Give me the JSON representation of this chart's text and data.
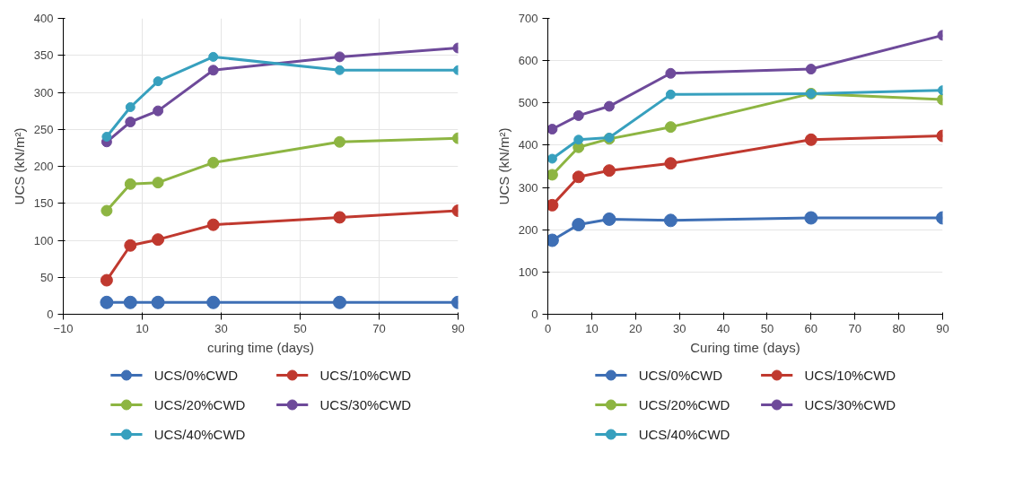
{
  "chart_data": [
    {
      "type": "line",
      "xlabel": "curing time (days)",
      "ylabel": "UCS (kN/m²)",
      "x": [
        1,
        7,
        14,
        28,
        60,
        90
      ],
      "xlim": [
        -10,
        90
      ],
      "xticks": [
        -10,
        10,
        30,
        50,
        70,
        90
      ],
      "ylim": [
        0,
        400
      ],
      "yticks": [
        0,
        50,
        100,
        150,
        200,
        250,
        300,
        350,
        400
      ],
      "grid": true,
      "legend": "bottom",
      "marker": "circle",
      "line_style": "solid",
      "series": [
        {
          "name": "UCS/0%CWD",
          "color": "#3e6fb5",
          "values": [
            16,
            16,
            16,
            16,
            16,
            16
          ]
        },
        {
          "name": "UCS/10%CWD",
          "color": "#c0392f",
          "values": [
            46,
            93,
            101,
            121,
            131,
            140
          ]
        },
        {
          "name": "UCS/20%CWD",
          "color": "#8db542",
          "values": [
            140,
            176,
            178,
            205,
            233,
            238
          ]
        },
        {
          "name": "UCS/30%CWD",
          "color": "#6e4a9a",
          "values": [
            233,
            260,
            275,
            330,
            348,
            360
          ]
        },
        {
          "name": "UCS/40%CWD",
          "color": "#37a0be",
          "values": [
            240,
            280,
            315,
            348,
            330,
            330
          ]
        }
      ]
    },
    {
      "type": "line",
      "xlabel": "Curing time (days)",
      "ylabel": "UCS (kN/m²)",
      "x": [
        1,
        7,
        14,
        28,
        60,
        90
      ],
      "xlim": [
        0,
        90
      ],
      "xticks": [
        0,
        10,
        20,
        30,
        40,
        50,
        60,
        70,
        80,
        90
      ],
      "ylim": [
        0,
        700
      ],
      "yticks": [
        0,
        100,
        200,
        300,
        400,
        500,
        600,
        700
      ],
      "grid": "y",
      "legend": "bottom",
      "marker": "circle",
      "line_style": "solid",
      "series": [
        {
          "name": "UCS/0%CWD",
          "color": "#3e6fb5",
          "values": [
            175,
            212,
            225,
            222,
            228,
            228
          ]
        },
        {
          "name": "UCS/10%CWD",
          "color": "#c0392f",
          "values": [
            258,
            325,
            340,
            357,
            413,
            422
          ]
        },
        {
          "name": "UCS/20%CWD",
          "color": "#8db542",
          "values": [
            330,
            395,
            415,
            443,
            522,
            508
          ]
        },
        {
          "name": "UCS/30%CWD",
          "color": "#6e4a9a",
          "values": [
            438,
            470,
            492,
            570,
            580,
            660
          ]
        },
        {
          "name": "UCS/40%CWD",
          "color": "#37a0be",
          "values": [
            368,
            413,
            418,
            520,
            522,
            530
          ]
        }
      ]
    }
  ]
}
